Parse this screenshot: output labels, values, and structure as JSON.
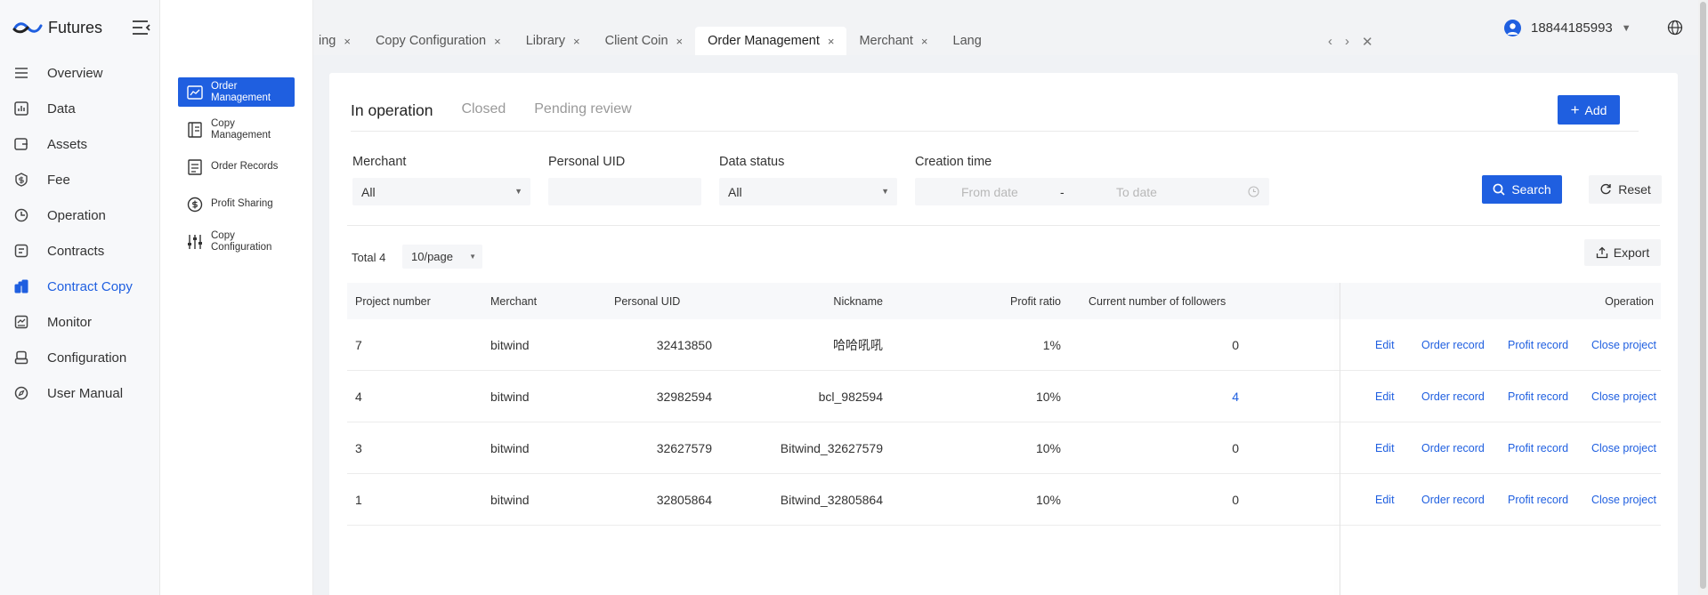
{
  "brand": {
    "name": "Futures"
  },
  "sidebar": {
    "items": [
      {
        "label": "Overview",
        "icon": "list-icon"
      },
      {
        "label": "Data",
        "icon": "chart-icon"
      },
      {
        "label": "Assets",
        "icon": "wallet-icon"
      },
      {
        "label": "Fee",
        "icon": "dollar-icon"
      },
      {
        "label": "Operation",
        "icon": "clock-icon"
      },
      {
        "label": "Contracts",
        "icon": "document-icon"
      },
      {
        "label": "Contract Copy",
        "icon": "copy-icon",
        "active": true
      },
      {
        "label": "Monitor",
        "icon": "monitor-icon"
      },
      {
        "label": "Configuration",
        "icon": "config-icon"
      },
      {
        "label": "User Manual",
        "icon": "compass-icon"
      }
    ]
  },
  "subnav": {
    "items": [
      {
        "label": "Order Management",
        "active": true
      },
      {
        "label": "Copy Management"
      },
      {
        "label": "Order Records"
      },
      {
        "label": "Profit Sharing"
      },
      {
        "label": "Copy Configuration"
      }
    ]
  },
  "tabs": [
    {
      "label": "ing"
    },
    {
      "label": "Copy Configuration"
    },
    {
      "label": "Library"
    },
    {
      "label": "Client Coin"
    },
    {
      "label": "Order Management",
      "active": true
    },
    {
      "label": "Merchant"
    },
    {
      "label": "Lang"
    }
  ],
  "tab_close": "×",
  "user": {
    "id": "18844185993"
  },
  "status_tabs": [
    {
      "label": "In operation",
      "active": true
    },
    {
      "label": "Closed"
    },
    {
      "label": "Pending review"
    }
  ],
  "add_label": "Add",
  "filters": {
    "merchant_label": "Merchant",
    "merchant_value": "All",
    "uid_label": "Personal UID",
    "uid_value": "",
    "status_label": "Data status",
    "status_value": "All",
    "time_label": "Creation time",
    "from_placeholder": "From date",
    "to_placeholder": "To date",
    "date_sep": "-"
  },
  "search_label": "Search",
  "reset_label": "Reset",
  "total_label": "Total 4",
  "page_size": "10/page",
  "export_label": "Export",
  "table": {
    "headers": {
      "project": "Project number",
      "merchant": "Merchant",
      "uid": "Personal UID",
      "nickname": "Nickname",
      "ratio": "Profit ratio",
      "followers": "Current number of followers",
      "operation": "Operation"
    },
    "rows": [
      {
        "project": "7",
        "merchant": "bitwind",
        "uid": "32413850",
        "nickname": "哈哈吼吼",
        "ratio": "1%",
        "followers": "0"
      },
      {
        "project": "4",
        "merchant": "bitwind",
        "uid": "32982594",
        "nickname": "bcl_982594",
        "ratio": "10%",
        "followers": "4"
      },
      {
        "project": "3",
        "merchant": "bitwind",
        "uid": "32627579",
        "nickname": "Bitwind_32627579",
        "ratio": "10%",
        "followers": "0"
      },
      {
        "project": "1",
        "merchant": "bitwind",
        "uid": "32805864",
        "nickname": "Bitwind_32805864",
        "ratio": "10%",
        "followers": "0"
      }
    ],
    "ops": {
      "edit": "Edit",
      "order": "Order record",
      "profit": "Profit record",
      "close": "Close project"
    }
  }
}
